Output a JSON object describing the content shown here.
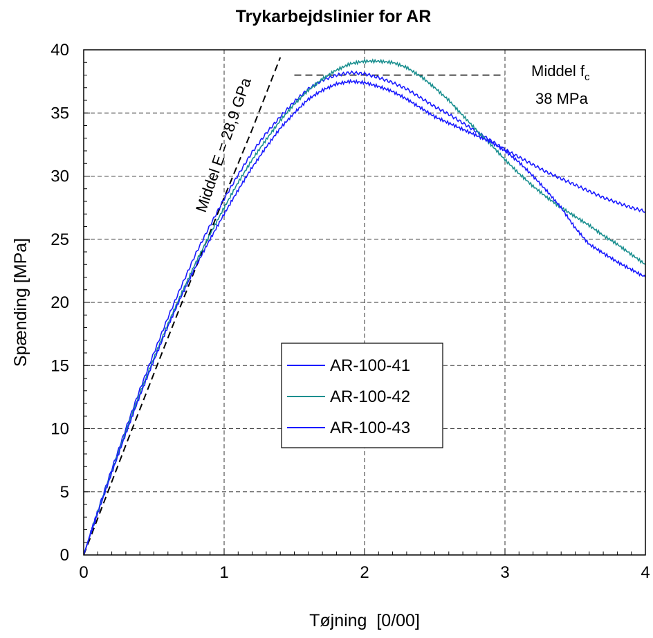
{
  "chart_data": {
    "type": "line",
    "title": "Trykarbejdslinier for AR",
    "xlabel": "Tøjning  [0/00]",
    "ylabel": "Spænding [MPa]",
    "xlim": [
      0,
      4
    ],
    "ylim": [
      0,
      40
    ],
    "xticks": [
      0,
      1,
      2,
      3,
      4
    ],
    "yticks": [
      0,
      5,
      10,
      15,
      20,
      25,
      30,
      35,
      40
    ],
    "grid": true,
    "legend_position": "center",
    "series": [
      {
        "name": "AR-100-41",
        "color": "#1a1aff",
        "x": [
          0,
          0.05,
          0.1,
          0.2,
          0.3,
          0.4,
          0.5,
          0.6,
          0.7,
          0.8,
          0.9,
          1.0,
          1.1,
          1.2,
          1.3,
          1.4,
          1.5,
          1.6,
          1.7,
          1.8,
          1.9,
          2.0,
          2.1,
          2.2,
          2.3,
          2.4,
          2.5,
          2.6,
          2.7,
          2.8,
          2.9,
          3.0,
          3.1,
          3.2,
          3.3,
          3.4,
          3.5,
          3.6,
          3.7,
          3.8,
          3.9,
          4.0
        ],
        "y": [
          0,
          1.8,
          3.5,
          6.8,
          10.0,
          13.1,
          16.0,
          18.8,
          21.4,
          23.9,
          26.1,
          28.2,
          30.1,
          31.9,
          33.4,
          34.7,
          35.9,
          36.9,
          37.6,
          38.0,
          38.2,
          38.1,
          37.8,
          37.4,
          36.9,
          36.2,
          35.5,
          34.9,
          34.2,
          33.5,
          32.8,
          32.1,
          31.5,
          30.9,
          30.3,
          29.8,
          29.3,
          28.8,
          28.3,
          27.9,
          27.5,
          27.2
        ]
      },
      {
        "name": "AR-100-42",
        "color": "#1a8f8f",
        "x": [
          0,
          0.05,
          0.1,
          0.2,
          0.3,
          0.4,
          0.5,
          0.6,
          0.7,
          0.8,
          0.9,
          1.0,
          1.1,
          1.2,
          1.3,
          1.4,
          1.5,
          1.6,
          1.7,
          1.8,
          1.9,
          2.0,
          2.1,
          2.2,
          2.3,
          2.4,
          2.5,
          2.6,
          2.7,
          2.8,
          2.9,
          3.0,
          3.1,
          3.2,
          3.3,
          3.4,
          3.5,
          3.6,
          3.7,
          3.8,
          3.9,
          4.0
        ],
        "y": [
          0,
          1.7,
          3.4,
          6.6,
          9.8,
          12.8,
          15.6,
          18.3,
          20.8,
          23.2,
          25.4,
          27.5,
          29.5,
          31.3,
          32.9,
          34.4,
          35.7,
          36.8,
          37.7,
          38.4,
          38.9,
          39.1,
          39.1,
          39.0,
          38.6,
          37.9,
          37.0,
          36.0,
          34.8,
          33.6,
          32.5,
          31.3,
          30.2,
          29.2,
          28.3,
          27.5,
          26.8,
          26.1,
          25.3,
          24.6,
          23.8,
          23.0
        ]
      },
      {
        "name": "AR-100-43",
        "color": "#1a1aff",
        "x": [
          0,
          0.05,
          0.1,
          0.2,
          0.3,
          0.4,
          0.5,
          0.6,
          0.7,
          0.8,
          0.9,
          1.0,
          1.1,
          1.2,
          1.3,
          1.4,
          1.5,
          1.6,
          1.7,
          1.8,
          1.9,
          2.0,
          2.1,
          2.2,
          2.3,
          2.4,
          2.5,
          2.6,
          2.7,
          2.8,
          2.9,
          3.0,
          3.1,
          3.2,
          3.3,
          3.4,
          3.5,
          3.6,
          3.7,
          3.8,
          3.9,
          4.0
        ],
        "y": [
          0,
          1.7,
          3.3,
          6.5,
          9.6,
          12.6,
          15.4,
          18.1,
          20.6,
          22.9,
          25.0,
          27.0,
          28.9,
          30.7,
          32.3,
          33.8,
          35.0,
          36.1,
          36.8,
          37.3,
          37.5,
          37.4,
          37.1,
          36.7,
          36.1,
          35.4,
          34.7,
          34.2,
          33.7,
          33.2,
          32.7,
          32.0,
          31.1,
          30.0,
          28.8,
          27.5,
          25.9,
          24.6,
          23.9,
          23.2,
          22.6,
          22.0
        ]
      }
    ],
    "reference_lines": {
      "modulus": {
        "label": "Middel E = 28,9 GPa",
        "x": [
          0,
          0.3,
          0.6,
          0.8,
          1.0,
          1.2,
          1.4
        ],
        "y": [
          0,
          8.7,
          17.2,
          22.8,
          28.3,
          33.7,
          39.4
        ]
      },
      "strength": {
        "label_main": "Middel f",
        "label_sub": "c",
        "label_value": "38 MPa",
        "y": 38,
        "x_start": 1.5,
        "x_end": 3.0
      }
    }
  }
}
